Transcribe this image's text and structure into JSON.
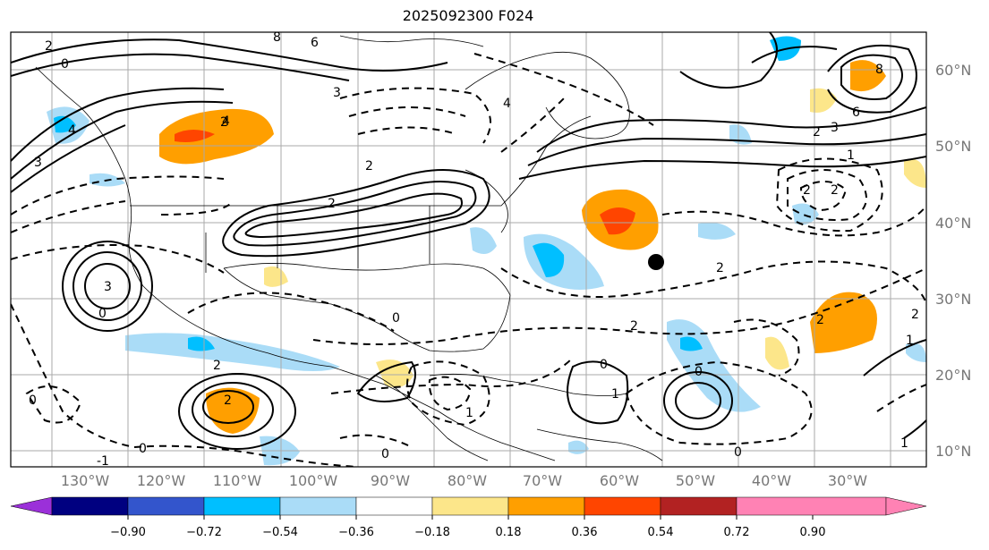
{
  "title": "2025092300 F024",
  "lat_labels": [
    "60°N",
    "50°N",
    "40°N",
    "30°N",
    "20°N",
    "10°N"
  ],
  "lon_labels": [
    "130°W",
    "120°W",
    "110°W",
    "100°W",
    "90°W",
    "80°W",
    "70°W",
    "60°W",
    "50°W",
    "40°W",
    "30°W"
  ],
  "colorbar": {
    "ticks": [
      "−0.90",
      "−0.72",
      "−0.54",
      "−0.36",
      "−0.18",
      "0.18",
      "0.36",
      "0.54",
      "0.72",
      "0.90"
    ],
    "colors": [
      "#9b30d9",
      "#000080",
      "#3355cc",
      "#00bfff",
      "#aadcf7",
      "#ffffff",
      "#fce68a",
      "#ff9f00",
      "#ff4500",
      "#b22222",
      "#ff82b4"
    ]
  },
  "contour_labels": [
    "2",
    "0",
    "4",
    "8",
    "6",
    "3",
    "2",
    "4",
    "4",
    "2",
    "3",
    "6",
    "8",
    "3",
    "2",
    "1",
    "2",
    "2",
    "2",
    "2",
    "3",
    "0",
    "2",
    "0",
    "1",
    "0",
    "2",
    "0",
    "1",
    "2",
    "2",
    "1",
    "0",
    "2",
    "-1",
    "0",
    "0",
    "0",
    "1"
  ],
  "marker": "storm-center"
}
